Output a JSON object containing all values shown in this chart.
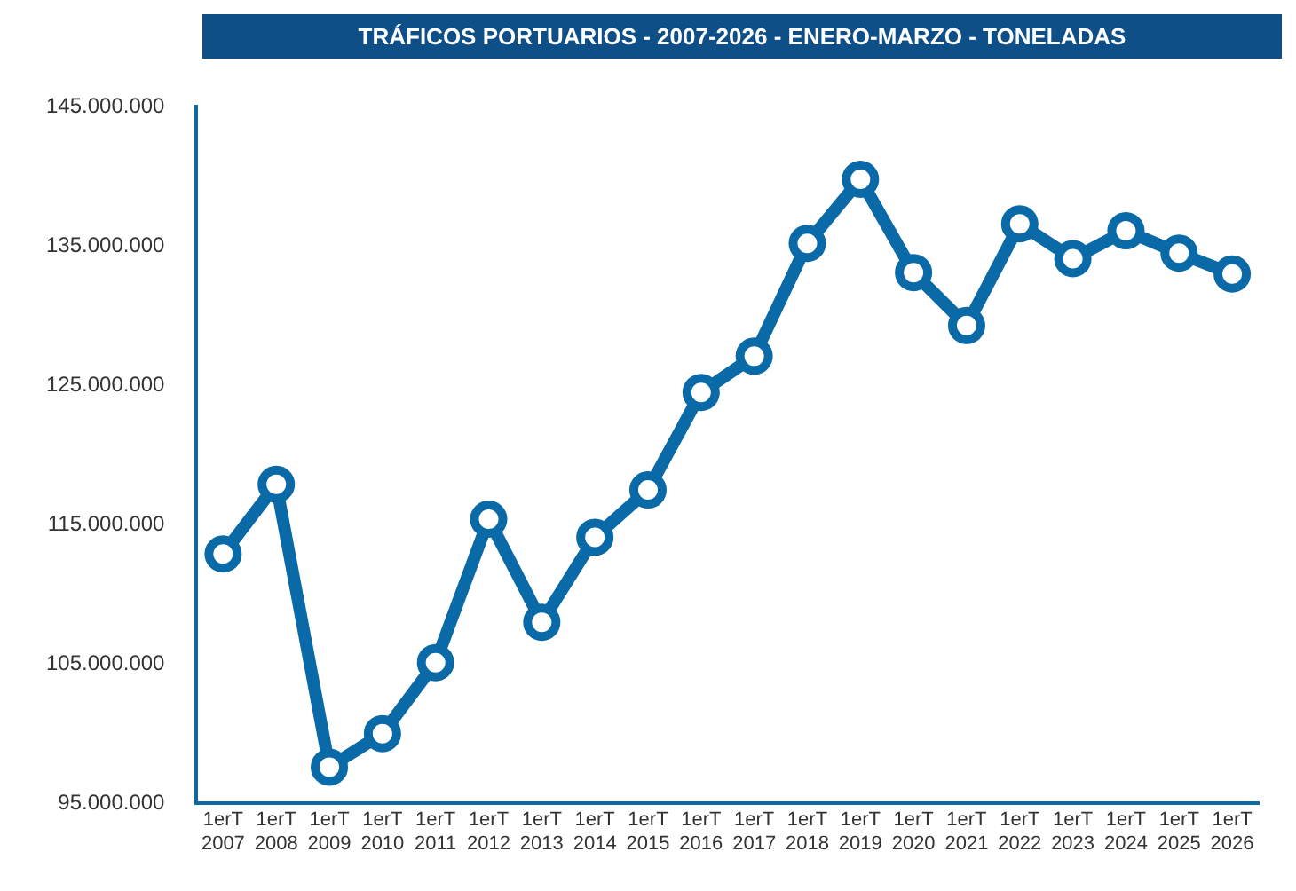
{
  "chart_data": {
    "type": "line",
    "title": "TRÁFICOS PORTUARIOS - 2007-2026 - ENERO-MARZO - TONELADAS",
    "categories": [
      "1erT 2007",
      "1erT 2008",
      "1erT 2009",
      "1erT 2010",
      "1erT 2011",
      "1erT 2012",
      "1erT 2013",
      "1erT 2014",
      "1erT 2015",
      "1erT 2016",
      "1erT 2017",
      "1erT 2018",
      "1erT 2019",
      "1erT 2020",
      "1erT 2021",
      "1erT 2022",
      "1erT 2023",
      "1erT 2024",
      "1erT 2025",
      "1erT 2026"
    ],
    "series": [
      {
        "color": "#0a6aa8",
        "values": [
          112900000,
          117900000,
          97600000,
          100000000,
          105100000,
          115400000,
          108000000,
          114100000,
          117500000,
          124500000,
          127100000,
          135200000,
          139800000,
          133100000,
          129300000,
          136600000,
          134100000,
          136100000,
          134500000,
          133000000
        ]
      }
    ],
    "ylim": [
      95000000,
      145000000
    ],
    "yticks": [
      {
        "value": 95000000,
        "label": "95.000.000"
      },
      {
        "value": 105000000,
        "label": "105.000.000"
      },
      {
        "value": 115000000,
        "label": "115.000.000"
      },
      {
        "value": 125000000,
        "label": "125.000.000"
      },
      {
        "value": 135000000,
        "label": "135.000.000"
      },
      {
        "value": 145000000,
        "label": "145.000.000"
      }
    ],
    "grid": false,
    "legend": false,
    "marker": "circle",
    "line_style": "solid"
  }
}
